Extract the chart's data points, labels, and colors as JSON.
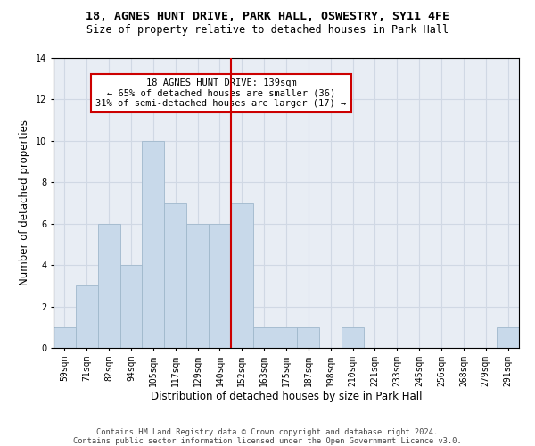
{
  "title1": "18, AGNES HUNT DRIVE, PARK HALL, OSWESTRY, SY11 4FE",
  "title2": "Size of property relative to detached houses in Park Hall",
  "xlabel": "Distribution of detached houses by size in Park Hall",
  "ylabel": "Number of detached properties",
  "bar_labels": [
    "59sqm",
    "71sqm",
    "82sqm",
    "94sqm",
    "105sqm",
    "117sqm",
    "129sqm",
    "140sqm",
    "152sqm",
    "163sqm",
    "175sqm",
    "187sqm",
    "198sqm",
    "210sqm",
    "221sqm",
    "233sqm",
    "245sqm",
    "256sqm",
    "268sqm",
    "279sqm",
    "291sqm"
  ],
  "bar_heights": [
    1,
    3,
    6,
    4,
    10,
    7,
    6,
    6,
    7,
    1,
    1,
    1,
    0,
    1,
    0,
    0,
    0,
    0,
    0,
    0,
    1
  ],
  "bar_color": "#c8d9ea",
  "bar_edge_color": "#a0b8cc",
  "vline_x_index": 7.5,
  "vline_color": "#cc0000",
  "annotation_text": "18 AGNES HUNT DRIVE: 139sqm\n← 65% of detached houses are smaller (36)\n31% of semi-detached houses are larger (17) →",
  "annotation_box_color": "#ffffff",
  "annotation_box_edge": "#cc0000",
  "ylim": [
    0,
    14
  ],
  "yticks": [
    0,
    2,
    4,
    6,
    8,
    10,
    12,
    14
  ],
  "grid_color": "#d0d8e4",
  "bg_color": "#e8edf4",
  "footnote": "Contains HM Land Registry data © Crown copyright and database right 2024.\nContains public sector information licensed under the Open Government Licence v3.0.",
  "title_fontsize": 9.5,
  "subtitle_fontsize": 8.5,
  "xlabel_fontsize": 8.5,
  "ylabel_fontsize": 8.5,
  "tick_fontsize": 7,
  "annot_fontsize": 7.5,
  "footnote_fontsize": 6.2
}
